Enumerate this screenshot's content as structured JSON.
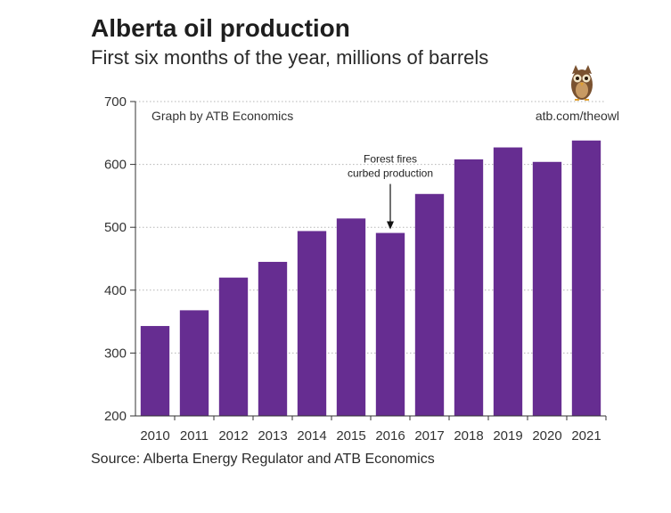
{
  "header": {
    "title": "Alberta oil production",
    "subtitle": "First six months of the year, millions of barrels"
  },
  "footer": {
    "source": "Source: Alberta Energy Regulator and ATB Economics"
  },
  "chart_data": {
    "type": "bar",
    "categories": [
      "2010",
      "2011",
      "2012",
      "2013",
      "2014",
      "2015",
      "2016",
      "2017",
      "2018",
      "2019",
      "2020",
      "2021"
    ],
    "values": [
      343,
      368,
      420,
      445,
      494,
      514,
      491,
      553,
      608,
      627,
      604,
      638
    ],
    "ylim": [
      200,
      700
    ],
    "yticks": [
      200,
      300,
      400,
      500,
      600,
      700
    ],
    "grid": true,
    "bar_color": "#662d91",
    "annotations": {
      "credit": "Graph by ATB Economics",
      "url": "atb.com/theowl",
      "note_line1": "Forest fires",
      "note_line2": "curbed production",
      "note_category": "2016"
    },
    "logo": "owl-icon"
  }
}
